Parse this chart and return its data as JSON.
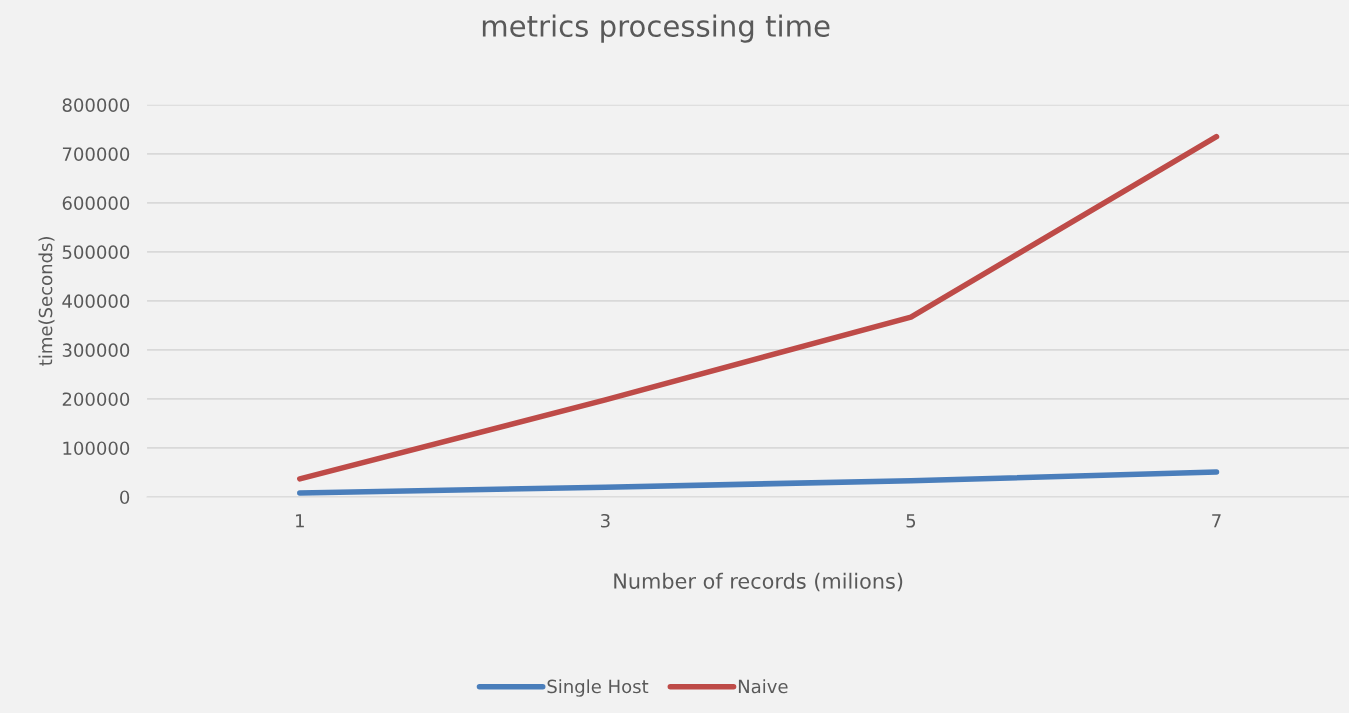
{
  "chart_data": {
    "type": "line",
    "title": "metrics processing time",
    "xlabel": "Number of records (milions)",
    "ylabel": "time(Seconds)",
    "categories": [
      "1",
      "3",
      "5",
      "7"
    ],
    "series": [
      {
        "name": "Single Host",
        "color": "#4a7ebb",
        "values": [
          8000,
          20000,
          33000,
          51000
        ]
      },
      {
        "name": "Naive",
        "color": "#be4b48",
        "values": [
          37000,
          198000,
          367000,
          735000
        ]
      }
    ],
    "ylim": [
      0,
      800000
    ],
    "yticks": [
      0,
      100000,
      200000,
      300000,
      400000,
      500000,
      600000,
      700000,
      800000
    ],
    "grid": "y",
    "legend": "bottom",
    "marker": "none",
    "line_style": "solid"
  }
}
